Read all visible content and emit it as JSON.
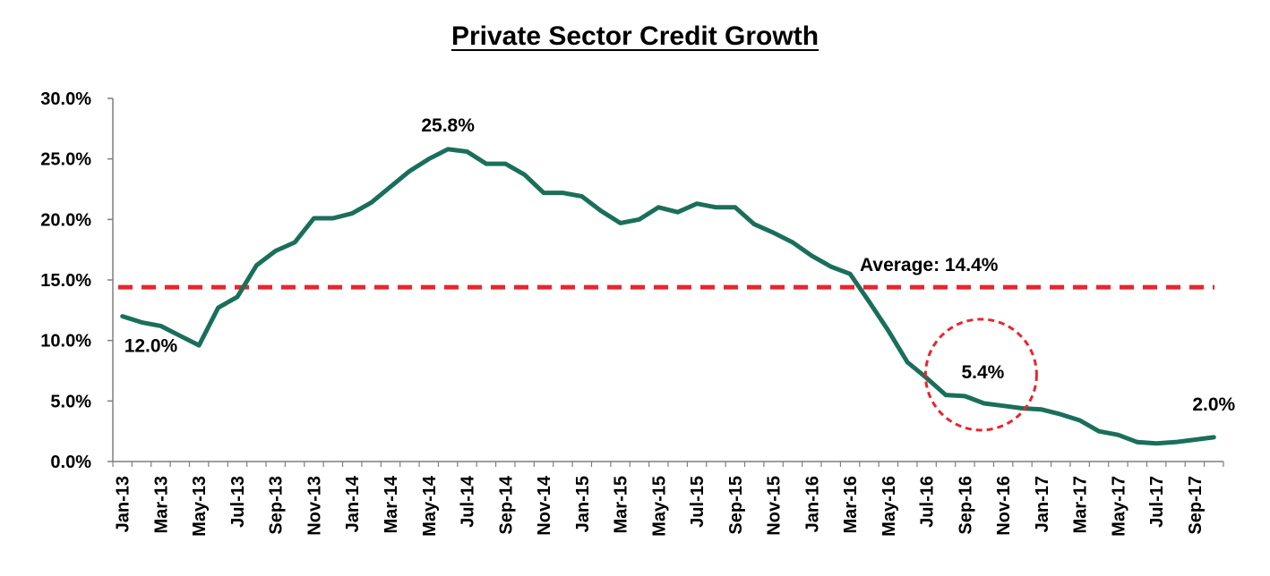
{
  "chart_data": {
    "type": "line",
    "title": "Private Sector Credit Growth",
    "xlabel": "",
    "ylabel": "",
    "ylim": [
      0,
      30
    ],
    "y_ticks": [
      "0.0%",
      "5.0%",
      "10.0%",
      "15.0%",
      "20.0%",
      "25.0%",
      "30.0%"
    ],
    "y_tick_values": [
      0,
      5,
      10,
      15,
      20,
      25,
      30
    ],
    "x_tick_labels": [
      "Jan-13",
      "Mar-13",
      "May-13",
      "Jul-13",
      "Sep-13",
      "Nov-13",
      "Jan-14",
      "Mar-14",
      "May-14",
      "Jul-14",
      "Sep-14",
      "Nov-14",
      "Jan-15",
      "Mar-15",
      "May-15",
      "Jul-15",
      "Sep-15",
      "Nov-15",
      "Jan-16",
      "Mar-16",
      "May-16",
      "Jul-16",
      "Sep-16",
      "Nov-16",
      "Jan-17",
      "Mar-17",
      "May-17",
      "Jul-17",
      "Sep-17"
    ],
    "grid": false,
    "series": [
      {
        "color": "#1a6f5a",
        "x": [
          "Jan-13",
          "Feb-13",
          "Mar-13",
          "Apr-13",
          "May-13",
          "Jun-13",
          "Jul-13",
          "Aug-13",
          "Sep-13",
          "Oct-13",
          "Nov-13",
          "Dec-13",
          "Jan-14",
          "Feb-14",
          "Mar-14",
          "Apr-14",
          "May-14",
          "Jun-14",
          "Jul-14",
          "Aug-14",
          "Sep-14",
          "Oct-14",
          "Nov-14",
          "Dec-14",
          "Jan-15",
          "Feb-15",
          "Mar-15",
          "Apr-15",
          "May-15",
          "Jun-15",
          "Jul-15",
          "Aug-15",
          "Sep-15",
          "Oct-15",
          "Nov-15",
          "Dec-15",
          "Jan-16",
          "Feb-16",
          "Mar-16",
          "Apr-16",
          "May-16",
          "Jun-16",
          "Jul-16",
          "Aug-16",
          "Sep-16",
          "Oct-16",
          "Nov-16",
          "Dec-16",
          "Jan-17",
          "Feb-17",
          "Mar-17",
          "Apr-17",
          "May-17",
          "Jun-17",
          "Jul-17",
          "Aug-17",
          "Sep-17",
          "Oct-17"
        ],
        "values": [
          12.0,
          11.5,
          11.2,
          10.4,
          9.6,
          12.7,
          13.6,
          16.2,
          17.4,
          18.1,
          20.1,
          20.1,
          20.5,
          21.4,
          22.7,
          24.0,
          25.0,
          25.8,
          25.6,
          24.6,
          24.6,
          23.7,
          22.2,
          22.2,
          21.9,
          20.7,
          19.7,
          20.0,
          21.0,
          20.6,
          21.3,
          21.0,
          21.0,
          19.6,
          18.9,
          18.1,
          17.0,
          16.1,
          15.5,
          13.2,
          10.8,
          8.2,
          6.9,
          5.5,
          5.4,
          4.8,
          4.6,
          4.4,
          4.3,
          3.9,
          3.4,
          2.5,
          2.2,
          1.6,
          1.5,
          1.6,
          1.8,
          2.0
        ]
      }
    ],
    "reference_line": {
      "value": 14.4,
      "label": "Average: 14.4%",
      "color": "#e8262c"
    },
    "annotations": [
      {
        "label": "25.8%",
        "x": "Jun-14",
        "value": 25.8
      },
      {
        "label": "12.0%",
        "x": "Jan-13",
        "value": 12.0
      },
      {
        "label": "5.4%",
        "x": "Sep-16",
        "value": 5.4,
        "circled": true,
        "circle_color": "#e8262c"
      },
      {
        "label": "2.0%",
        "x": "Oct-17",
        "value": 2.0
      }
    ]
  }
}
